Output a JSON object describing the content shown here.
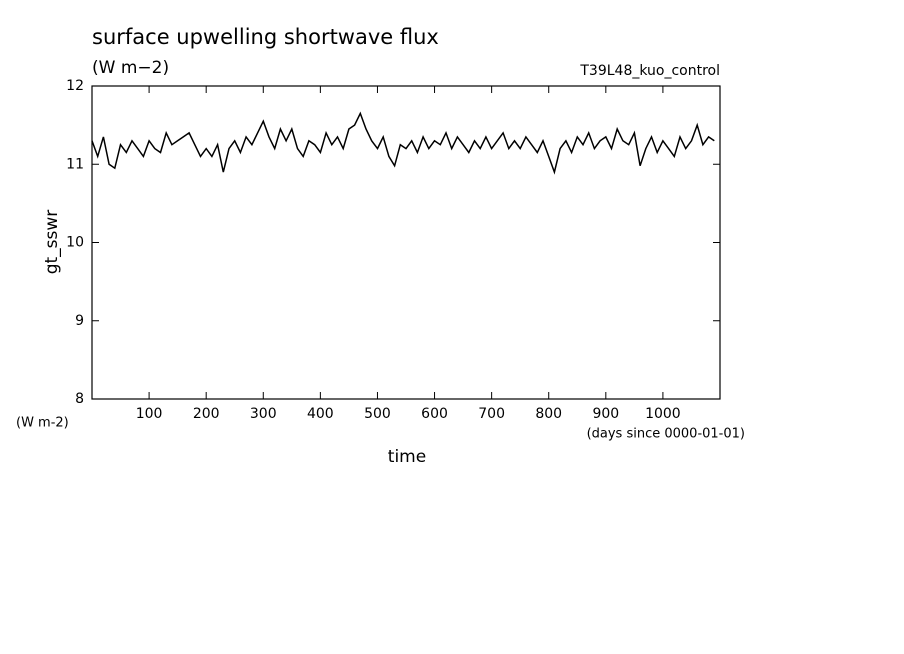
{
  "chart_data": {
    "type": "line",
    "title": "surface upwelling shortwave flux",
    "subtitle": "(W m−2)",
    "annotation": "T39L48_kuo_control",
    "ylabel": "gt_sswr",
    "yunit": "(W m-2)",
    "xunit": "(days since 0000-01-01)",
    "xlabel": "time",
    "color": "#000000",
    "xlim": [
      0,
      1100
    ],
    "ylim": [
      8,
      12
    ],
    "xticks": [
      100,
      200,
      300,
      400,
      500,
      600,
      700,
      800,
      900,
      1000
    ],
    "yticks": [
      8,
      9,
      10,
      11,
      12
    ],
    "x": [
      0,
      10,
      20,
      30,
      40,
      50,
      60,
      70,
      80,
      90,
      100,
      110,
      120,
      130,
      140,
      150,
      160,
      170,
      180,
      190,
      200,
      210,
      220,
      230,
      240,
      250,
      260,
      270,
      280,
      290,
      300,
      310,
      320,
      330,
      340,
      350,
      360,
      370,
      380,
      390,
      400,
      410,
      420,
      430,
      440,
      450,
      460,
      470,
      480,
      490,
      500,
      510,
      520,
      530,
      540,
      550,
      560,
      570,
      580,
      590,
      600,
      610,
      620,
      630,
      640,
      650,
      660,
      670,
      680,
      690,
      700,
      710,
      720,
      730,
      740,
      750,
      760,
      770,
      780,
      790,
      800,
      810,
      820,
      830,
      840,
      850,
      860,
      870,
      880,
      890,
      900,
      910,
      920,
      930,
      940,
      950,
      960,
      970,
      980,
      990,
      1000,
      1010,
      1020,
      1030,
      1040,
      1050,
      1060,
      1070,
      1080,
      1090
    ],
    "values": [
      11.3,
      11.1,
      11.35,
      11.0,
      10.95,
      11.25,
      11.15,
      11.3,
      11.2,
      11.1,
      11.3,
      11.2,
      11.15,
      11.4,
      11.25,
      11.3,
      11.35,
      11.4,
      11.25,
      11.1,
      11.2,
      11.1,
      11.25,
      10.9,
      11.2,
      11.3,
      11.15,
      11.35,
      11.25,
      11.4,
      11.55,
      11.35,
      11.2,
      11.45,
      11.3,
      11.45,
      11.2,
      11.1,
      11.3,
      11.25,
      11.15,
      11.4,
      11.25,
      11.35,
      11.2,
      11.45,
      11.5,
      11.65,
      11.45,
      11.3,
      11.2,
      11.35,
      11.1,
      10.98,
      11.25,
      11.2,
      11.3,
      11.15,
      11.35,
      11.2,
      11.3,
      11.25,
      11.4,
      11.2,
      11.35,
      11.25,
      11.15,
      11.3,
      11.2,
      11.35,
      11.2,
      11.3,
      11.4,
      11.2,
      11.3,
      11.2,
      11.35,
      11.25,
      11.15,
      11.3,
      11.1,
      10.9,
      11.2,
      11.3,
      11.15,
      11.35,
      11.25,
      11.4,
      11.2,
      11.3,
      11.35,
      11.2,
      11.45,
      11.3,
      11.25,
      11.4,
      10.98,
      11.2,
      11.35,
      11.15,
      11.3,
      11.2,
      11.1,
      11.35,
      11.2,
      11.3,
      11.5,
      11.25,
      11.35,
      11.3
    ]
  }
}
